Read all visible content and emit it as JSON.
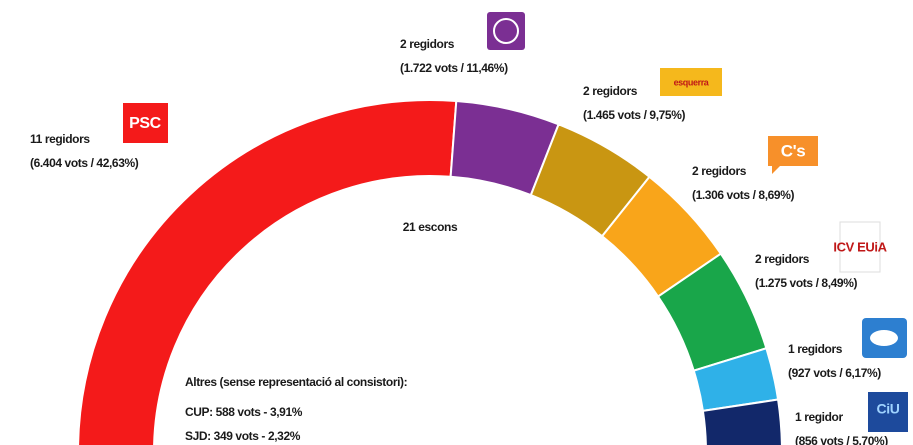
{
  "chart_data": {
    "type": "hemicycle",
    "center_label": "21 escons",
    "logos": [
      "PSC",
      null,
      "esquerra",
      "C's",
      "ICV EUiA",
      null,
      "CiU"
    ],
    "values": [
      11,
      2,
      2,
      2,
      2,
      1,
      1
    ],
    "value_labels": [
      "11 regidors",
      "2 regidors",
      "2 regidors",
      "2 regidors",
      "2 regidors",
      "1 regidors",
      "1 regidor"
    ],
    "vote_labels": [
      "(6.404 vots / 42,63%)",
      "(1.722 vots / 11,46%)",
      "(1.465 vots / 9,75%)",
      "(1.306 vots / 8,69%)",
      "(1.275 vots / 8,49%)",
      "(927 vots / 6,17%)",
      "(856 vots / 5,70%)"
    ],
    "colors": [
      "#f41a1a",
      "#7b2f93",
      "#c99612",
      "#f9a51a",
      "#19a64a",
      "#2fb1e8",
      "#12286a"
    ],
    "others_title": "Altres (sense representació al consistori):",
    "others": [
      "CUP: 588 vots - 3,91%",
      "SJD: 349 vots - 2,32%"
    ]
  }
}
